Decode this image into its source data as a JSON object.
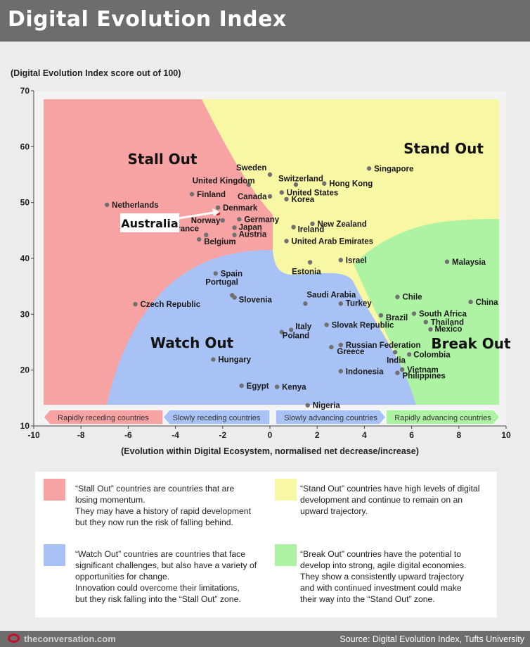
{
  "header": {
    "title": "Digital Evolution Index"
  },
  "chart_data": {
    "type": "scatter",
    "title": "",
    "ylabel": "(Digital Evolution Index score out of 100)",
    "xlabel": "(Evolution within Digital Ecosystem, normalised net decrease/increase)",
    "xlim": [
      -10,
      10
    ],
    "ylim": [
      10,
      70
    ],
    "xticks": [
      -10,
      -8,
      -6,
      -4,
      -2,
      0,
      2,
      4,
      6,
      8,
      10
    ],
    "yticks": [
      10,
      20,
      30,
      40,
      50,
      60,
      70
    ],
    "zones": [
      {
        "name": "Stall Out",
        "color": "#f8a3a3"
      },
      {
        "name": "Stand Out",
        "color": "#f8f7a4"
      },
      {
        "name": "Watch Out",
        "color": "#a9c2f5"
      },
      {
        "name": "Break Out",
        "color": "#aef3a4"
      }
    ],
    "bands": [
      {
        "label": "Rapidly receding countries",
        "color": "#f8a3a3"
      },
      {
        "label": "Slowly receding countries",
        "color": "#a9c2f5"
      },
      {
        "label": "Slowly advancing countries",
        "color": "#a9c2f5"
      },
      {
        "label": "Rapidly advancing countries",
        "color": "#aef3a4"
      }
    ],
    "callout": "Australia",
    "highlight_color": "#d62020",
    "point_color": "#707070",
    "points": [
      {
        "name": "Netherlands",
        "x": -6.9,
        "y": 49.6
      },
      {
        "name": "Finland",
        "x": -3.3,
        "y": 51.5
      },
      {
        "name": "Denmark",
        "x": -2.2,
        "y": 49.1
      },
      {
        "name": "Australia",
        "x": -2.2,
        "y": 48.1,
        "highlight": true
      },
      {
        "name": "Norway",
        "x": -2.0,
        "y": 46.8
      },
      {
        "name": "Germany",
        "x": -1.3,
        "y": 47.0
      },
      {
        "name": "France",
        "x": -2.7,
        "y": 44.2
      },
      {
        "name": "Japan",
        "x": -1.5,
        "y": 45.5
      },
      {
        "name": "Austria",
        "x": -1.5,
        "y": 44.2
      },
      {
        "name": "Belgium",
        "x": -3.0,
        "y": 43.4
      },
      {
        "name": "United Kingdom",
        "x": -0.9,
        "y": 53.2
      },
      {
        "name": "Sweden",
        "x": 0.0,
        "y": 55.0
      },
      {
        "name": "Switzerland",
        "x": 1.1,
        "y": 53.2
      },
      {
        "name": "Hong Kong",
        "x": 2.3,
        "y": 53.4
      },
      {
        "name": "Singapore",
        "x": 4.2,
        "y": 56.1
      },
      {
        "name": "Canada",
        "x": 0.0,
        "y": 51.1
      },
      {
        "name": "United States",
        "x": 0.5,
        "y": 51.8
      },
      {
        "name": "Korea",
        "x": 0.7,
        "y": 50.6
      },
      {
        "name": "New Zealand",
        "x": 1.8,
        "y": 46.2
      },
      {
        "name": "Ireland",
        "x": 1.0,
        "y": 45.6
      },
      {
        "name": "United Arab Emirates",
        "x": 0.7,
        "y": 43.1
      },
      {
        "name": "Israel",
        "x": 3.0,
        "y": 39.7
      },
      {
        "name": "Estonia",
        "x": 1.7,
        "y": 39.3
      },
      {
        "name": "Malaysia",
        "x": 7.5,
        "y": 39.4
      },
      {
        "name": "Spain",
        "x": -2.3,
        "y": 37.3
      },
      {
        "name": "Portugal",
        "x": -1.6,
        "y": 33.4
      },
      {
        "name": "Slovenia",
        "x": -1.5,
        "y": 33.0
      },
      {
        "name": "Czech Republic",
        "x": -5.7,
        "y": 31.8
      },
      {
        "name": "Saudi Arabia",
        "x": 1.5,
        "y": 31.9
      },
      {
        "name": "Turkey",
        "x": 3.0,
        "y": 31.9
      },
      {
        "name": "Chile",
        "x": 5.4,
        "y": 33.1
      },
      {
        "name": "China",
        "x": 8.5,
        "y": 32.2
      },
      {
        "name": "Brazil",
        "x": 4.7,
        "y": 29.8
      },
      {
        "name": "South Africa",
        "x": 6.1,
        "y": 30.1
      },
      {
        "name": "Thailand",
        "x": 6.6,
        "y": 28.6
      },
      {
        "name": "Mexico",
        "x": 6.8,
        "y": 27.3
      },
      {
        "name": "Slovak Republic",
        "x": 2.4,
        "y": 28.1
      },
      {
        "name": "Italy",
        "x": 0.9,
        "y": 27.2
      },
      {
        "name": "Poland",
        "x": 0.5,
        "y": 26.8
      },
      {
        "name": "Russian Federation",
        "x": 3.0,
        "y": 24.5
      },
      {
        "name": "Greece",
        "x": 2.6,
        "y": 24.1
      },
      {
        "name": "India",
        "x": 5.3,
        "y": 23.2
      },
      {
        "name": "Colombia",
        "x": 5.9,
        "y": 22.8
      },
      {
        "name": "Hungary",
        "x": -2.4,
        "y": 21.9
      },
      {
        "name": "Indonesia",
        "x": 3.0,
        "y": 19.8
      },
      {
        "name": "Vietnam",
        "x": 5.6,
        "y": 20.1
      },
      {
        "name": "Philippines",
        "x": 5.4,
        "y": 19.5
      },
      {
        "name": "Egypt",
        "x": -1.2,
        "y": 17.2
      },
      {
        "name": "Kenya",
        "x": 0.3,
        "y": 17.0
      },
      {
        "name": "Nigeria",
        "x": 1.6,
        "y": 13.7
      }
    ]
  },
  "legend": {
    "stall_out": {
      "color": "#f8a3a3",
      "text": "“Stall Out” countries are countries that are\nlosing momentum.\nThey may have a history of rapid development\nbut they now run the risk of falling behind."
    },
    "stand_out": {
      "color": "#f8f7a4",
      "text": "“Stand Out” countries have high levels of digital\ndevelopment and continue to remain on an\nupward  trajectory."
    },
    "watch_out": {
      "color": "#a9c2f5",
      "text": "“Watch Out” countries are countries that face\nsignificant challenges, but also have a variety of\nopportunities for change.\nInnovation could overcome their limitations,\nbut they risk falling into the “Stall Out” zone."
    },
    "break_out": {
      "color": "#aef3a4",
      "text": "“Break Out” countries have the potential to\ndevelop into strong, agile digital economies.\nThey show a consistently upward trajectory\nand with continued investment could make\ntheir way into the “Stand Out” zone."
    }
  },
  "footer": {
    "logo_text": "theconversation.com",
    "source": "Source: Digital Evolution Index, Tufts University"
  }
}
